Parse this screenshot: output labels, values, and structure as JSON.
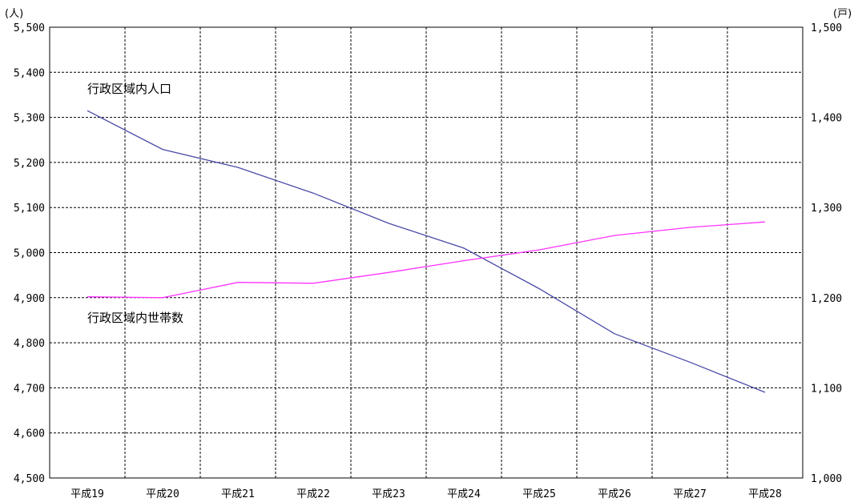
{
  "chart_data": {
    "type": "line",
    "categories": [
      "平成19",
      "平成20",
      "平成21",
      "平成22",
      "平成23",
      "平成24",
      "平成25",
      "平成26",
      "平成27",
      "平成28"
    ],
    "y_left": {
      "unit": "(人)",
      "ylim": [
        4500,
        5500
      ],
      "ticks": [
        4500,
        4600,
        4700,
        4800,
        4900,
        5000,
        5100,
        5200,
        5300,
        5400,
        5500
      ],
      "tick_labels": [
        "4,500",
        "4,600",
        "4,700",
        "4,800",
        "4,900",
        "5,000",
        "5,100",
        "5,200",
        "5,300",
        "5,400",
        "5,500"
      ]
    },
    "y_right": {
      "unit": "(戸)",
      "ylim": [
        1000,
        1500
      ],
      "ticks": [
        1000,
        1100,
        1200,
        1300,
        1400,
        1500
      ],
      "tick_labels": [
        "1,000",
        "1,100",
        "1,200",
        "1,300",
        "1,400",
        "1,500"
      ]
    },
    "series": [
      {
        "name": "行政区域内人口",
        "axis": "left",
        "color": "#4b4ba8",
        "values": [
          5315,
          5229,
          5189,
          5132,
          5065,
          5010,
          4920,
          4820,
          4757,
          4690
        ]
      },
      {
        "name": "行政区域内世帯数",
        "axis": "right",
        "color": "#ff33ff",
        "values": [
          1201,
          1200,
          1217,
          1216,
          1228,
          1241,
          1253,
          1269,
          1278,
          1284
        ]
      }
    ],
    "grid": true,
    "legend": "inline-left"
  }
}
